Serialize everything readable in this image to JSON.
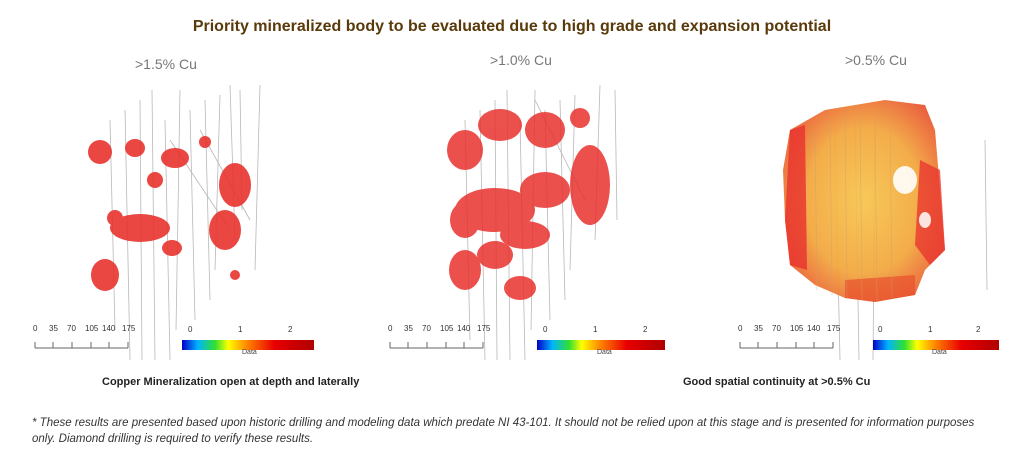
{
  "title": "Priority mineralized body to be evaluated due to high grade and expansion potential",
  "panels": [
    {
      "label": ">1.5% Cu"
    },
    {
      "label": ">1.0% Cu"
    },
    {
      "label": ">0.5% Cu"
    }
  ],
  "scale_ticks": [
    "0",
    "35",
    "70",
    "105",
    "140",
    "175"
  ],
  "colorbar": {
    "ticks": [
      "0",
      "1",
      "2"
    ],
    "label": "Data"
  },
  "captions": {
    "left": "Copper Mineralization open at depth and laterally",
    "right": "Good spatial continuity at >0.5% Cu"
  },
  "footnote": "* These results are presented based upon historic drilling and modeling data which predate NI 43-101.  It should not be relied upon at this stage and is presented for information purposes only.  Diamond drilling is required to verify these results.",
  "colors": {
    "title": "#5a3a0a",
    "grade_high": "#e8322e",
    "grade_mid": "#f2a53a"
  }
}
